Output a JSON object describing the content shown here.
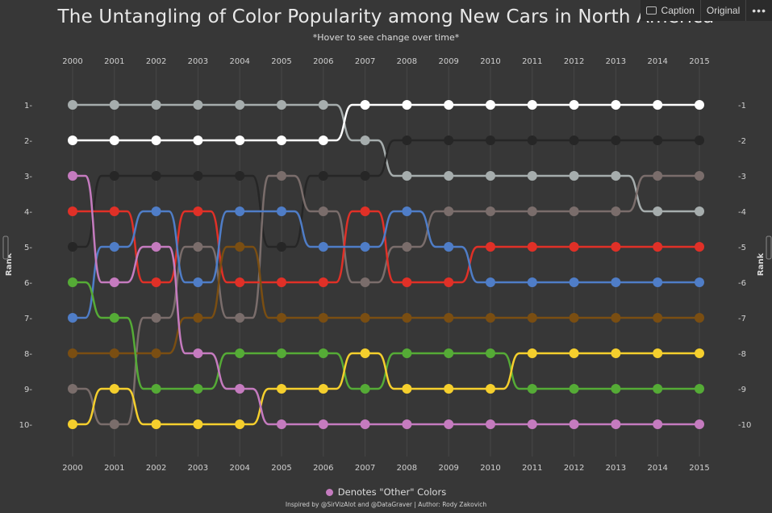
{
  "title": "The Untangling of Color Popularity among New Cars in North America",
  "subtitle": "*Hover to see change over time*",
  "toolbar": {
    "caption": "Caption",
    "original": "Original",
    "more": "•••"
  },
  "legend": {
    "label": "Denotes \"Other\" Colors",
    "color": "#c57bbf"
  },
  "credits": "Inspired by @SirVizAlot and @DataGraver | Author: Rody Zakovich",
  "chart_data": {
    "type": "line",
    "chart_style": "bump",
    "title": "The Untangling of Color Popularity among New Cars in North America",
    "subtitle": "*Hover to see change over time*",
    "x": [
      2000,
      2001,
      2002,
      2003,
      2004,
      2005,
      2006,
      2007,
      2008,
      2009,
      2010,
      2011,
      2012,
      2013,
      2014,
      2015
    ],
    "x_tick_labels": [
      "2000",
      "2001",
      "2002",
      "2003",
      "2004",
      "2005",
      "2006",
      "2007",
      "2008",
      "2009",
      "2010",
      "2011",
      "2012",
      "2013",
      "2014",
      "2015"
    ],
    "y_tick_labels": [
      "1",
      "2",
      "3",
      "4",
      "5",
      "6",
      "7",
      "8",
      "9",
      "10"
    ],
    "ylabel": "Rank",
    "ylabel_right": "Rank",
    "ylim": [
      10,
      1
    ],
    "series": [
      {
        "name": "Silver",
        "color": "#a6adad",
        "values": [
          1,
          1,
          1,
          1,
          1,
          1,
          1,
          2,
          3,
          3,
          3,
          3,
          3,
          3,
          4,
          4
        ]
      },
      {
        "name": "White",
        "color": "#ffffff",
        "values": [
          2,
          2,
          2,
          2,
          2,
          2,
          2,
          1,
          1,
          1,
          1,
          1,
          1,
          1,
          1,
          1
        ]
      },
      {
        "name": "Black",
        "color": "#262626",
        "values": [
          5,
          3,
          3,
          3,
          3,
          5,
          3,
          3,
          2,
          2,
          2,
          2,
          2,
          2,
          2,
          2
        ]
      },
      {
        "name": "Gray",
        "color": "#7a6d6b",
        "values": [
          9,
          10,
          7,
          5,
          7,
          3,
          4,
          6,
          5,
          4,
          4,
          4,
          4,
          4,
          3,
          3
        ]
      },
      {
        "name": "Red",
        "color": "#e03027",
        "values": [
          4,
          4,
          6,
          4,
          6,
          6,
          6,
          4,
          6,
          6,
          5,
          5,
          5,
          5,
          5,
          5
        ]
      },
      {
        "name": "Blue",
        "color": "#4f7dc7",
        "values": [
          7,
          5,
          4,
          6,
          4,
          4,
          5,
          5,
          4,
          5,
          6,
          6,
          6,
          6,
          6,
          6
        ]
      },
      {
        "name": "Brown",
        "color": "#7a4e12",
        "values": [
          8,
          8,
          8,
          7,
          5,
          7,
          7,
          7,
          7,
          7,
          7,
          7,
          7,
          7,
          7,
          7
        ]
      },
      {
        "name": "Green",
        "color": "#55ab36",
        "values": [
          6,
          7,
          9,
          9,
          8,
          8,
          8,
          9,
          8,
          8,
          8,
          9,
          9,
          9,
          9,
          9
        ]
      },
      {
        "name": "Yellow",
        "color": "#f5cf2d",
        "values": [
          10,
          9,
          10,
          10,
          10,
          9,
          9,
          8,
          9,
          9,
          9,
          8,
          8,
          8,
          8,
          8
        ]
      },
      {
        "name": "Other",
        "color": "#c57bbf",
        "values": [
          3,
          6,
          5,
          8,
          9,
          10,
          10,
          10,
          10,
          10,
          10,
          10,
          10,
          10,
          10,
          10
        ]
      }
    ],
    "legend": "bottom-center"
  }
}
